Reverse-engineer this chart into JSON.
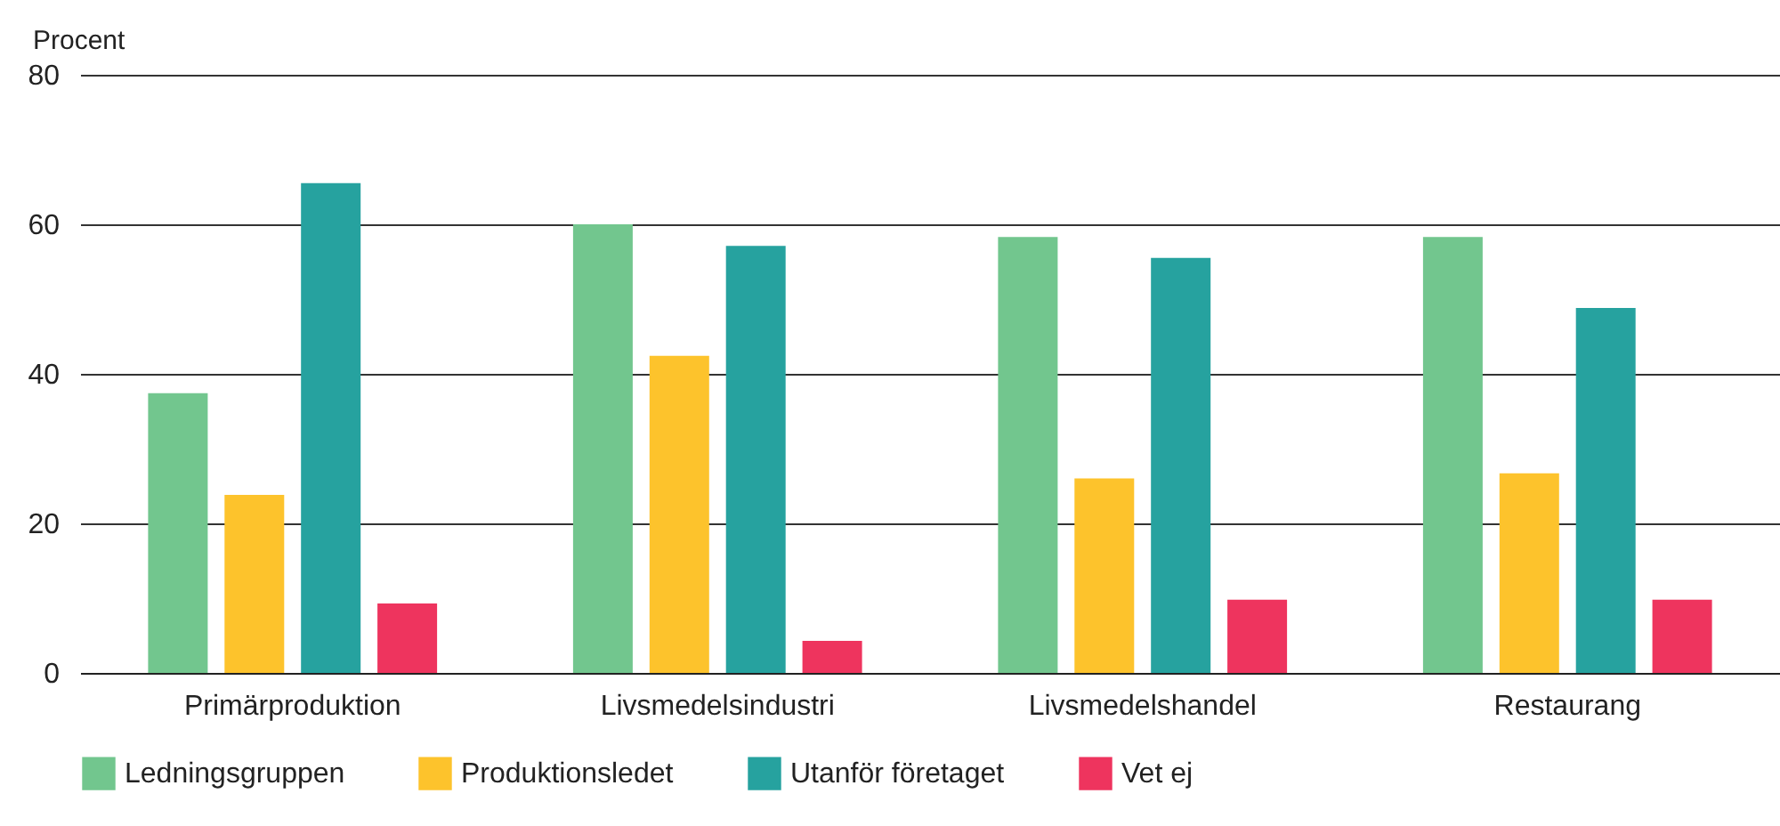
{
  "chart_data": {
    "type": "bar",
    "ylabel": "Procent",
    "categories": [
      "Primärproduktion",
      "Livsmedelsindustri",
      "Livsmedelshandel",
      "Restaurang"
    ],
    "series": [
      {
        "name": "Ledningsgruppen",
        "color": "#72c68e",
        "values": [
          37.4,
          60,
          58.3,
          58.3
        ]
      },
      {
        "name": "Produktionsledet",
        "color": "#fdc32c",
        "values": [
          23.8,
          42.4,
          26,
          26.7
        ]
      },
      {
        "name": "Utanför företaget",
        "color": "#26a29f",
        "values": [
          65.5,
          57.1,
          55.5,
          48.8
        ]
      },
      {
        "name": "Vet ej",
        "color": "#ee345e",
        "values": [
          9.3,
          4.3,
          9.8,
          9.8
        ]
      }
    ],
    "ylim": [
      0,
      80
    ],
    "yticks": [
      0,
      20,
      40,
      60,
      80
    ],
    "grid": "y",
    "legend": "bottom"
  }
}
